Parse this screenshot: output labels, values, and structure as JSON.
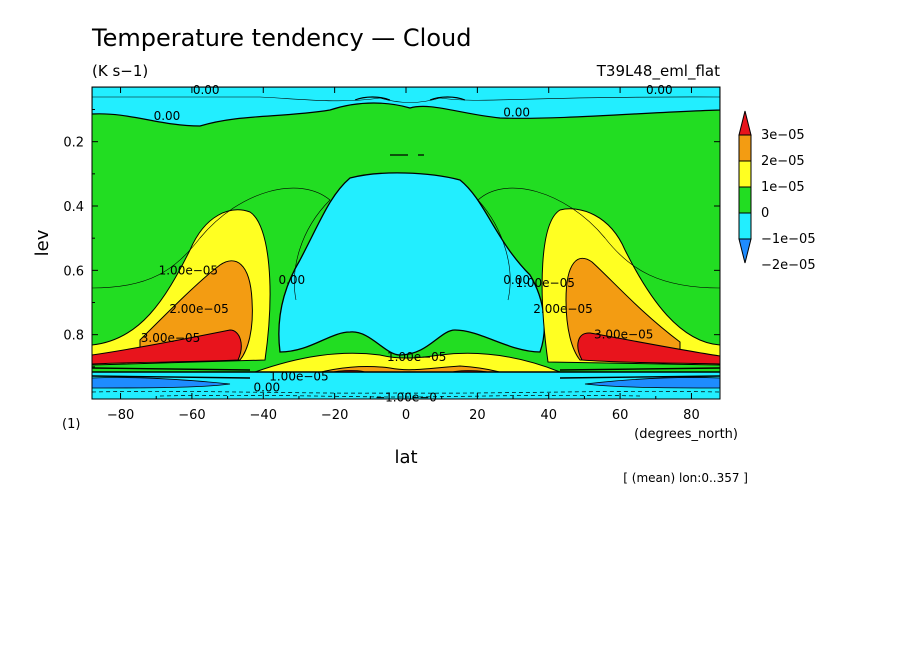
{
  "chart_data": {
    "type": "contour",
    "title": "Temperature tendency — Cloud",
    "units": "(K s−1)",
    "experiment": "T39L48_eml_flat",
    "xlabel": "lat",
    "xunits": "(degrees_north)",
    "ylabel": "lev",
    "yunits": "(1)",
    "footnote": "[ (mean) lon:0..357 ]",
    "xlim": [
      -88,
      88
    ],
    "ylim": [
      1.0,
      0.03
    ],
    "xticks": [
      -80,
      -60,
      -40,
      -20,
      0,
      20,
      40,
      60,
      80
    ],
    "xtick_labels": [
      "−80",
      "−60",
      "−40",
      "−20",
      "0",
      "20",
      "40",
      "60",
      "80"
    ],
    "yticks": [
      0.2,
      0.4,
      0.6,
      0.8
    ],
    "ytick_labels": [
      "0.2",
      "0.4",
      "0.6",
      "0.8"
    ],
    "levels": [
      -2e-05,
      -1e-05,
      0,
      1e-05,
      2e-05,
      3e-05
    ],
    "colorbar": {
      "labels": [
        "3e−05",
        "2e−05",
        "1e−05",
        "0",
        "−1e−05",
        "−2e−05"
      ],
      "colors": [
        "#e8141c",
        "#f39c12",
        "#ffff22",
        "#22dd22",
        "#22eeff",
        "#1e8cff"
      ]
    },
    "colors": {
      "strong_neg": "#1e8cff",
      "neg": "#22eeff",
      "zero": "#22dd22",
      "pos1": "#ffff22",
      "pos2": "#f39c12",
      "pos3": "#e8141c",
      "line": "#000000"
    },
    "regions": {
      "neg_top": {
        "lat": [
          -88,
          88
        ],
        "lev": [
          0.03,
          0.1
        ]
      },
      "neg_mid": {
        "lat": [
          -38,
          38
        ],
        "lev": [
          0.27,
          0.86
        ]
      },
      "pos_nh_sh_bands": {
        "lat": [
          [
            -88,
            -40
          ],
          [
            40,
            88
          ]
        ],
        "lev": [
          0.4,
          0.9
        ]
      },
      "max_low_level": {
        "lat": [
          [
            -88,
            -50
          ],
          [
            50,
            88
          ]
        ],
        "lev": [
          0.83,
          0.9
        ]
      }
    },
    "contour_labels": [
      {
        "text": "0.00",
        "lat": -56,
        "lev": 0.04
      },
      {
        "text": "0.00",
        "lat": 71,
        "lev": 0.04
      },
      {
        "text": "0.00",
        "lat": -67,
        "lev": 0.12
      },
      {
        "text": "0.00",
        "lat": 31,
        "lev": 0.11
      },
      {
        "text": "0.00",
        "lat": -32,
        "lev": 0.63
      },
      {
        "text": "0.00",
        "lat": 31,
        "lev": 0.63
      },
      {
        "text": "0.00",
        "lat": -39,
        "lev": 0.965
      },
      {
        "text": "1.00e−05",
        "lat": -61,
        "lev": 0.6
      },
      {
        "text": "2.00e−05",
        "lat": -58,
        "lev": 0.72
      },
      {
        "text": "3.00e−05",
        "lat": -66,
        "lev": 0.81
      },
      {
        "text": "1.00e−05",
        "lat": 39,
        "lev": 0.64
      },
      {
        "text": "2.00e−05",
        "lat": 44,
        "lev": 0.72
      },
      {
        "text": "3.00e−05",
        "lat": 61,
        "lev": 0.8
      },
      {
        "text": "1.00e−05",
        "lat": 3,
        "lev": 0.87
      },
      {
        "text": "1.00e−05",
        "lat": -30,
        "lev": 0.93
      },
      {
        "text": "−1.00e−0",
        "lat": 0,
        "lev": 0.995
      }
    ]
  }
}
